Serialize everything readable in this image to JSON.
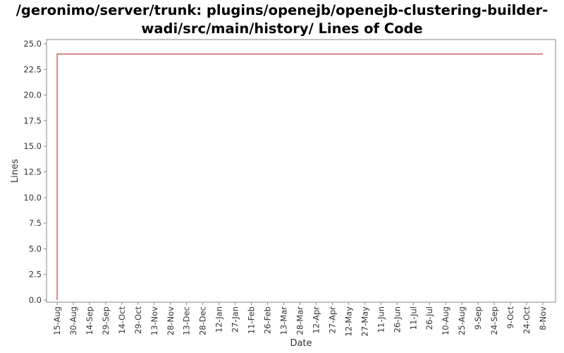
{
  "chart_data": {
    "type": "line",
    "title_line1": "/geronimo/server/trunk: plugins/openejb/openejb-clustering-builder-",
    "title_line2": "wadi/src/main/history/ Lines of Code",
    "xlabel": "Date",
    "ylabel": "Lines",
    "ylim": [
      0,
      25
    ],
    "y_ticks": [
      "0.0",
      "2.5",
      "5.0",
      "7.5",
      "10.0",
      "12.5",
      "15.0",
      "17.5",
      "20.0",
      "22.5",
      "25.0"
    ],
    "x_ticks": [
      "15-Aug",
      "30-Aug",
      "14-Sep",
      "29-Sep",
      "14-Oct",
      "29-Oct",
      "13-Nov",
      "28-Nov",
      "13-Dec",
      "28-Dec",
      "12-Jan",
      "27-Jan",
      "11-Feb",
      "26-Feb",
      "13-Mar",
      "28-Mar",
      "12-Apr",
      "27-Apr",
      "12-May",
      "27-May",
      "11-Jun",
      "26-Jun",
      "11-Jul",
      "26-Jul",
      "10-Aug",
      "25-Aug",
      "9-Sep",
      "24-Sep",
      "9-Oct",
      "24-Oct",
      "8-Nov"
    ],
    "grid": false,
    "series": [
      {
        "color": "#b22222",
        "points": [
          {
            "x": "15-Aug",
            "y": 0
          },
          {
            "x": "15-Aug",
            "y": 24
          },
          {
            "x": "8-Nov",
            "y": 24
          }
        ]
      }
    ]
  }
}
